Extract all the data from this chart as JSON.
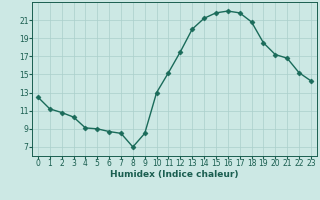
{
  "x": [
    0,
    1,
    2,
    3,
    4,
    5,
    6,
    7,
    8,
    9,
    10,
    11,
    12,
    13,
    14,
    15,
    16,
    17,
    18,
    19,
    20,
    21,
    22,
    23
  ],
  "y": [
    12.5,
    11.2,
    10.8,
    10.3,
    9.1,
    9.0,
    8.7,
    8.5,
    7.0,
    8.5,
    13.0,
    15.2,
    17.5,
    20.0,
    21.2,
    21.8,
    22.0,
    21.8,
    20.8,
    18.5,
    17.2,
    16.8,
    15.2,
    14.3
  ],
  "line_color": "#1a6b5a",
  "marker": "D",
  "marker_size": 2.5,
  "bg_color": "#cce8e4",
  "grid_color": "#aacfcb",
  "xlabel": "Humidex (Indice chaleur)",
  "xlim": [
    -0.5,
    23.5
  ],
  "ylim": [
    6,
    23
  ],
  "yticks": [
    7,
    9,
    11,
    13,
    15,
    17,
    19,
    21
  ],
  "xticks": [
    0,
    1,
    2,
    3,
    4,
    5,
    6,
    7,
    8,
    9,
    10,
    11,
    12,
    13,
    14,
    15,
    16,
    17,
    18,
    19,
    20,
    21,
    22,
    23
  ],
  "xlabel_fontsize": 6.5,
  "tick_fontsize": 5.5,
  "tick_color": "#1a5e50",
  "axis_color": "#1a5e50",
  "line_width": 1.0
}
